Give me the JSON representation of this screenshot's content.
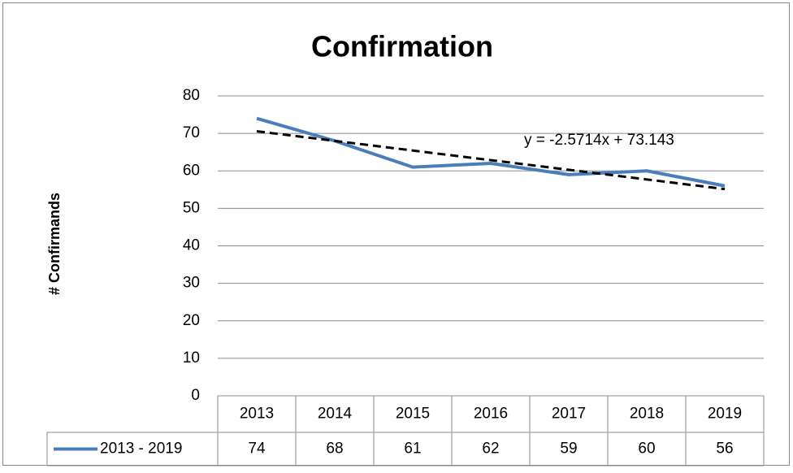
{
  "chart_data": {
    "type": "line",
    "title": "Confirmation",
    "y_label": "# Confirmands",
    "categories": [
      "2013",
      "2014",
      "2015",
      "2016",
      "2017",
      "2018",
      "2019"
    ],
    "series": [
      {
        "name": "2013 - 2019",
        "color": "#4a7ebb",
        "values": [
          74,
          68,
          61,
          62,
          59,
          60,
          56
        ]
      }
    ],
    "trendline": {
      "label": "y = -2.5714x + 73.143",
      "slope": -2.5714,
      "intercept": 73.143
    },
    "ylim": [
      0,
      80
    ],
    "yticks": [
      0,
      10,
      20,
      30,
      40,
      50,
      60,
      70,
      80
    ],
    "grid": true,
    "data_table": true
  }
}
